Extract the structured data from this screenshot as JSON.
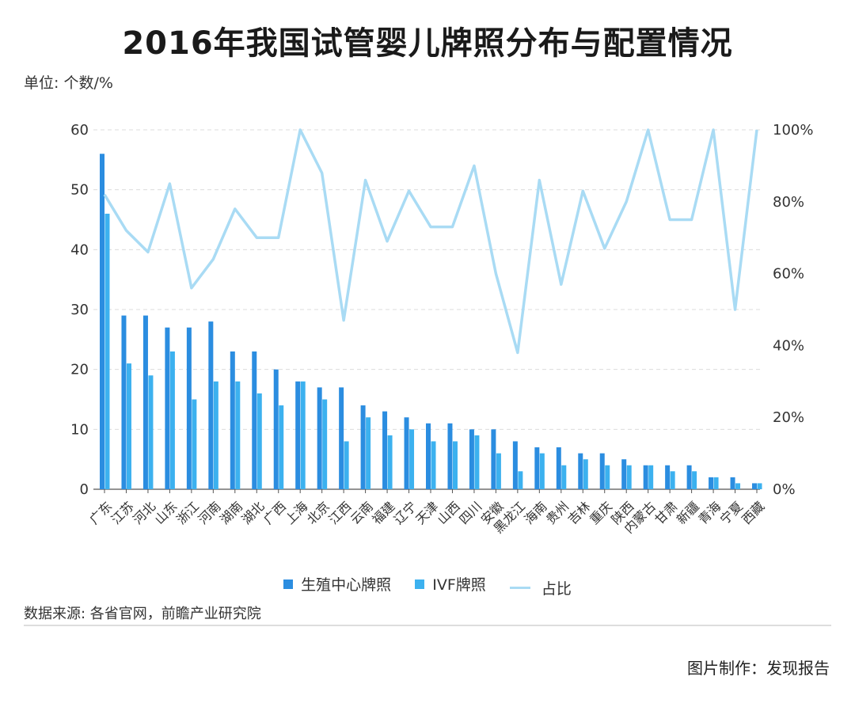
{
  "title": "2016年我国试管婴儿牌照分布与配置情况",
  "unit_label": "单位: 个数/%",
  "source": "数据来源: 各省官网，前瞻产业研究院",
  "credit": "图片制作：发现报告",
  "colors": {
    "center": "#2b8de0",
    "ivf": "#3cb1ef",
    "ratio": "#a9dbf4",
    "grid": "#dcdcdc",
    "axis": "#555555"
  },
  "chart_data": {
    "type": "bar",
    "categories": [
      "广东",
      "江苏",
      "河北",
      "山东",
      "浙江",
      "河南",
      "湖南",
      "湖北",
      "广西",
      "上海",
      "北京",
      "江西",
      "云南",
      "福建",
      "辽宁",
      "天津",
      "山西",
      "四川",
      "安徽",
      "黑龙江",
      "海南",
      "贵州",
      "吉林",
      "重庆",
      "陕西",
      "内蒙古",
      "甘肃",
      "新疆",
      "青海",
      "宁夏",
      "西藏"
    ],
    "series": [
      {
        "name": "生殖中心牌照",
        "type": "bar",
        "axis": "left",
        "values": [
          56,
          29,
          29,
          27,
          27,
          28,
          23,
          23,
          20,
          18,
          17,
          17,
          14,
          13,
          12,
          11,
          11,
          10,
          10,
          8,
          7,
          7,
          6,
          6,
          5,
          4,
          4,
          4,
          2,
          2,
          1
        ]
      },
      {
        "name": "IVF牌照",
        "type": "bar",
        "axis": "left",
        "values": [
          46,
          21,
          19,
          23,
          15,
          18,
          18,
          16,
          14,
          18,
          15,
          8,
          12,
          9,
          10,
          8,
          8,
          9,
          6,
          3,
          6,
          4,
          5,
          4,
          4,
          4,
          3,
          3,
          2,
          1,
          1
        ]
      },
      {
        "name": "占比",
        "type": "line",
        "axis": "right",
        "values": [
          82,
          72,
          66,
          85,
          56,
          64,
          78,
          70,
          70,
          100,
          88,
          47,
          86,
          69,
          83,
          73,
          73,
          90,
          60,
          38,
          86,
          57,
          83,
          67,
          80,
          100,
          75,
          75,
          100,
          50,
          100
        ]
      }
    ],
    "y_left": {
      "min": 0,
      "max": 60,
      "ticks": [
        0,
        10,
        20,
        30,
        40,
        50,
        60
      ]
    },
    "y_right": {
      "min": 0,
      "max": 100,
      "ticks": [
        0,
        20,
        40,
        60,
        80,
        100
      ],
      "tick_labels": [
        "0%",
        "20%",
        "40%",
        "60%",
        "80%",
        "100%"
      ]
    },
    "grid": true,
    "legend_position": "bottom"
  }
}
